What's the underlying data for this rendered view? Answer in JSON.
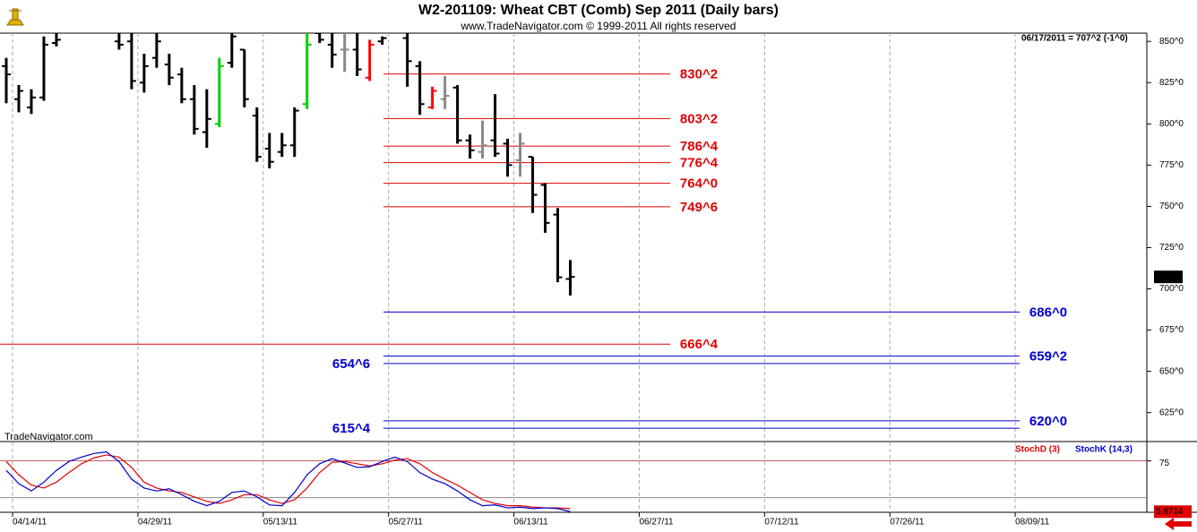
{
  "chart_data": [
    {
      "type": "ohlc",
      "title": "W2-201109:  Wheat CBT (Comb) Sep 2011  (Daily bars)",
      "subtitle": "www.TradeNavigator.com © 1999-2011 All rights reserved",
      "status": "06/17/2011 = 707^2 (-1^0)",
      "watermark": "TradeNavigator.com",
      "x": [
        0,
        1,
        2,
        3,
        4,
        9,
        10,
        11,
        12,
        13,
        14,
        15,
        16,
        17,
        18,
        19,
        20,
        21,
        22,
        23,
        24,
        25,
        26,
        27,
        28,
        29,
        30,
        32,
        33,
        34,
        35,
        36,
        37,
        38,
        39,
        40,
        41,
        42,
        43,
        44,
        45
      ],
      "open": [
        835,
        815,
        810,
        816,
        849,
        850,
        850,
        825,
        840,
        836,
        830,
        815,
        795,
        800,
        837,
        845,
        805,
        785,
        783,
        787,
        812,
        855,
        848,
        845,
        845,
        828,
        850,
        852,
        835,
        810,
        815,
        822,
        790,
        783,
        790,
        788,
        778,
        780,
        763,
        745,
        706
      ],
      "high": [
        840,
        823.5,
        821,
        853,
        860,
        858,
        860,
        842.5,
        860,
        842.5,
        834,
        823.5,
        821,
        840,
        860,
        845,
        810,
        794.5,
        794.5,
        810,
        860,
        860,
        860,
        860,
        860,
        851,
        853,
        860,
        838,
        822.5,
        829,
        823.5,
        793.5,
        802,
        818,
        791,
        794.5,
        780,
        764,
        749,
        717.5
      ],
      "low": [
        812.5,
        807,
        806,
        814,
        847,
        845,
        821,
        819,
        834,
        823.5,
        812.5,
        793.5,
        785.5,
        798,
        834,
        810,
        777,
        773,
        780,
        780,
        809,
        849,
        834,
        831.5,
        829,
        826,
        848,
        822.5,
        805.5,
        809,
        809,
        788,
        779,
        779,
        780,
        768,
        768,
        746,
        734,
        704,
        696
      ],
      "close": [
        830,
        820,
        816,
        848,
        851,
        848,
        826,
        835,
        850,
        828,
        815,
        797,
        803,
        835,
        853,
        815,
        780,
        777,
        787,
        808,
        848,
        851,
        842,
        845,
        833,
        848,
        852,
        838,
        812,
        820,
        817,
        790,
        784,
        787,
        782,
        775,
        788,
        757,
        740,
        707,
        707.25
      ],
      "colors": [
        "#000",
        "#000",
        "#000",
        "#000",
        "#000",
        "#000",
        "#000",
        "#000",
        "#000",
        "#000",
        "#000",
        "#000",
        "#000",
        "#00d000",
        "#000",
        "#000",
        "#000",
        "#000",
        "#000",
        "#000",
        "#00d000",
        "#000",
        "#000",
        "#888",
        "#000",
        "#ff0000",
        "#000",
        "#000",
        "#000",
        "#ff0000",
        "#888",
        "#000",
        "#000",
        "#888",
        "#000",
        "#000",
        "#888",
        "#000",
        "#000",
        "#000",
        "#000"
      ],
      "xlim": [
        -0.5,
        91
      ],
      "ylim": [
        608,
        855
      ],
      "yticks": [
        {
          "value": 850,
          "label": "850^0"
        },
        {
          "value": 825,
          "label": "825^0"
        },
        {
          "value": 800,
          "label": "800^0"
        },
        {
          "value": 775,
          "label": "775^0"
        },
        {
          "value": 750,
          "label": "750^0"
        },
        {
          "value": 725,
          "label": "725^0"
        },
        {
          "value": 700,
          "label": "700^0"
        },
        {
          "value": 675,
          "label": "675^0"
        },
        {
          "value": 650,
          "label": "650^0"
        },
        {
          "value": 625,
          "label": "625^0"
        }
      ],
      "grid": "x",
      "last": {
        "value": 707.25,
        "label": "707^2"
      },
      "levels": [
        {
          "value": 830.25,
          "label": "830^2",
          "color": "#e00000"
        },
        {
          "value": 803.25,
          "label": "803^2",
          "color": "#e00000"
        },
        {
          "value": 786.5,
          "label": "786^4",
          "color": "#e00000"
        },
        {
          "value": 776.5,
          "label": "776^4",
          "color": "#e00000"
        },
        {
          "value": 764,
          "label": "764^0",
          "color": "#e00000"
        },
        {
          "value": 749.75,
          "label": "749^6",
          "color": "#e00000"
        },
        {
          "value": 666.5,
          "label": "666^4",
          "color": "#e00000"
        },
        {
          "value": 686,
          "label": "686^0",
          "color": "#0000cc"
        },
        {
          "value": 659.25,
          "label": "659^2",
          "color": "#0000cc"
        },
        {
          "value": 654.75,
          "label": "654^6",
          "color": "#0000cc"
        },
        {
          "value": 620,
          "label": "620^0",
          "color": "#0000cc"
        },
        {
          "value": 615.5,
          "label": "615^4",
          "color": "#0000cc"
        }
      ]
    },
    {
      "type": "line",
      "x": [
        0,
        1,
        2,
        3,
        4,
        5,
        6,
        7,
        8,
        9,
        10,
        11,
        12,
        13,
        14,
        15,
        16,
        17,
        18,
        19,
        20,
        21,
        22,
        23,
        24,
        25,
        26,
        27,
        28,
        29,
        30,
        31,
        32,
        33,
        34,
        35,
        36,
        37,
        38,
        39,
        40,
        41,
        42,
        43,
        44,
        45
      ],
      "series": [
        {
          "name": "StochD (3)",
          "color": "#e00000",
          "values": [
            74,
            56,
            42,
            38,
            46,
            59,
            71,
            79,
            83,
            80,
            66,
            46,
            38,
            34,
            32,
            26,
            20,
            17,
            22,
            29,
            29,
            22,
            17,
            22,
            38,
            59,
            73,
            74,
            71,
            68,
            71,
            76,
            78,
            71,
            59,
            50,
            42,
            32,
            22,
            17,
            14,
            14,
            12,
            11,
            11,
            10
          ]
        },
        {
          "name": "StochK (14,3)",
          "color": "#0000cc",
          "values": [
            62,
            44,
            34,
            46,
            62,
            74,
            80,
            85,
            87,
            74,
            50,
            38,
            34,
            37,
            29,
            20,
            14,
            20,
            32,
            34,
            26,
            15,
            14,
            32,
            56,
            71,
            78,
            72,
            66,
            67,
            74,
            80,
            74,
            59,
            50,
            44,
            34,
            22,
            14,
            15,
            11,
            12,
            10,
            11,
            10,
            5.87
          ]
        }
      ],
      "xlim": [
        -0.5,
        91
      ],
      "ylim": [
        5,
        100
      ],
      "yticks": [
        75
      ],
      "reference_lines": [
        75,
        25
      ],
      "last": 5.8714,
      "xticks": [
        {
          "value": 0.5,
          "label": "04/14/11"
        },
        {
          "value": 10.5,
          "label": "04/29/11"
        },
        {
          "value": 20.5,
          "label": "05/13/11"
        },
        {
          "value": 30.5,
          "label": "05/27/11"
        },
        {
          "value": 40.5,
          "label": "06/13/11"
        },
        {
          "value": 50.5,
          "label": "06/27/11"
        },
        {
          "value": 60.5,
          "label": "07/12/11"
        },
        {
          "value": 70.5,
          "label": "07/26/11"
        },
        {
          "value": 80.5,
          "label": "08/09/11"
        }
      ]
    }
  ]
}
